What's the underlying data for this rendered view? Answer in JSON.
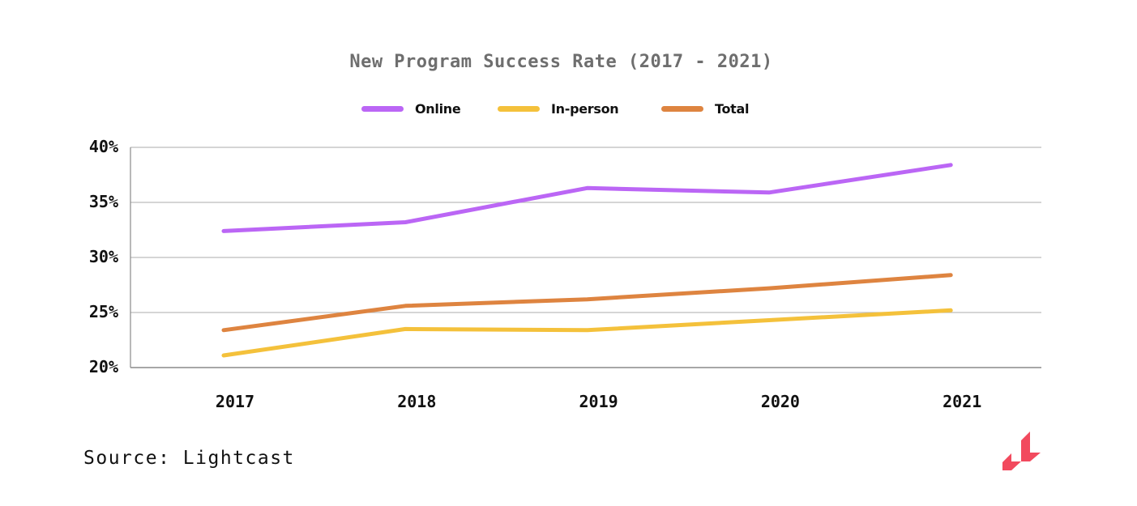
{
  "chart_data": {
    "type": "line",
    "title": "New Program Success Rate (2017 - 2021)",
    "xlabel": "",
    "ylabel": "",
    "categories": [
      "2017",
      "2018",
      "2019",
      "2020",
      "2021"
    ],
    "y_ticks": [
      "20%",
      "25%",
      "30%",
      "35%",
      "40%"
    ],
    "ylim": [
      20,
      40
    ],
    "y_tick_values": [
      20,
      25,
      30,
      35,
      40
    ],
    "grid": true,
    "legend_position": "top-center",
    "series": [
      {
        "name": "Online",
        "color": "#bb66f5",
        "values": [
          32.4,
          33.2,
          36.3,
          35.9,
          38.4
        ]
      },
      {
        "name": "In-person",
        "color": "#f4c13b",
        "values": [
          21.1,
          23.5,
          23.4,
          24.3,
          25.2
        ]
      },
      {
        "name": "Total",
        "color": "#de8440",
        "values": [
          23.4,
          25.6,
          26.2,
          27.2,
          28.4
        ]
      }
    ]
  },
  "source": "Source: Lightcast",
  "logo": {
    "name": "lightcast-logo",
    "color": "#f24a5e"
  }
}
